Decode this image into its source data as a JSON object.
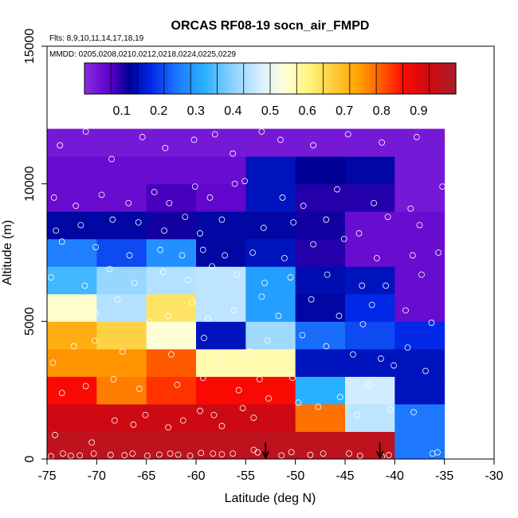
{
  "chart_data": {
    "type": "heatmap",
    "title": "ORCAS RF08-19 socn_air_FMPD",
    "flights_note": "Flts: 8,9,10,11,14,17,18,19",
    "dates_note": "MMDD: 0205,0208,0210,0212,0218,0224,0225,0229",
    "xlabel": "Latitude (deg N)",
    "ylabel": "Altitude (m)",
    "xlim": [
      -75,
      -30
    ],
    "ylim": [
      0,
      15000
    ],
    "x_ticks": [
      -75,
      -70,
      -65,
      -60,
      -55,
      -50,
      -45,
      -40,
      -35,
      -30
    ],
    "y_ticks": [
      0,
      5000,
      10000,
      15000
    ],
    "x_tick_labels": [
      "-75",
      "-70",
      "-65",
      "-60",
      "-55",
      "-50",
      "-45",
      "-40",
      "-35",
      "-30"
    ],
    "y_tick_labels": [
      "0",
      "5000",
      "10000",
      "15000"
    ],
    "colorbar": {
      "range": [
        0,
        1
      ],
      "tick_values": [
        0.1,
        0.2,
        0.3,
        0.4,
        0.5,
        0.6,
        0.7,
        0.8,
        0.9
      ],
      "tick_labels": [
        "0.1",
        "0.2",
        "0.3",
        "0.4",
        "0.5",
        "0.6",
        "0.7",
        "0.8",
        "0.9"
      ]
    },
    "lat_bin_edges": [
      -75,
      -70,
      -65,
      -60,
      -55,
      -50,
      -45,
      -40,
      -35
    ],
    "alt_bin_edges": [
      0,
      1000,
      2000,
      3000,
      4000,
      5000,
      6000,
      7000,
      8000,
      9000,
      10000,
      11000,
      12000
    ],
    "grid_values_bottom_to_top": [
      [
        0.96,
        0.96,
        0.96,
        0.96,
        0.96,
        0.96,
        0.96,
        0.25
      ],
      [
        0.93,
        0.93,
        0.93,
        0.93,
        0.93,
        0.78,
        0.45,
        0.25
      ],
      [
        0.87,
        0.77,
        0.83,
        0.87,
        0.87,
        0.32,
        0.47,
        0.15
      ],
      [
        0.75,
        0.75,
        0.8,
        0.57,
        0.57,
        0.15,
        0.15,
        0.15
      ],
      [
        0.72,
        0.66,
        0.54,
        0.15,
        0.42,
        0.24,
        0.21,
        0.18
      ],
      [
        0.55,
        0.44,
        0.63,
        0.45,
        0.3,
        0.13,
        0.18,
        0.05
      ],
      [
        0.34,
        0.41,
        0.44,
        0.45,
        0.3,
        0.14,
        0.15,
        0.05
      ],
      [
        0.26,
        0.21,
        0.28,
        0.13,
        0.15,
        0.1,
        0.05,
        0.05
      ],
      [
        0.13,
        0.13,
        0.11,
        0.13,
        0.13,
        0.11,
        0.05,
        0.05
      ],
      [
        0.05,
        0.05,
        0.08,
        0.06,
        0.15,
        0.1,
        0.1,
        0.03
      ],
      [
        0.05,
        0.05,
        0.05,
        0.05,
        0.15,
        0.12,
        0.13,
        0.03
      ],
      [
        0.03,
        0.03,
        0.03,
        0.03,
        0.03,
        0.03,
        0.03,
        0.03
      ]
    ],
    "obs_points": [
      [
        -74.6,
        100
      ],
      [
        -73.4,
        200
      ],
      [
        -72.6,
        120
      ],
      [
        -71.7,
        130
      ],
      [
        -70.3,
        200
      ],
      [
        -68.6,
        150
      ],
      [
        -67.2,
        140
      ],
      [
        -66.4,
        200
      ],
      [
        -64.9,
        120
      ],
      [
        -63.7,
        160
      ],
      [
        -62.6,
        200
      ],
      [
        -61.8,
        160
      ],
      [
        -60.6,
        120
      ],
      [
        -59.5,
        220
      ],
      [
        -58.3,
        200
      ],
      [
        -57.4,
        170
      ],
      [
        -56.3,
        200
      ],
      [
        -54.2,
        330
      ],
      [
        -53.8,
        240
      ],
      [
        -51.4,
        130
      ],
      [
        -50.4,
        250
      ],
      [
        -48.5,
        150
      ],
      [
        -47.2,
        200
      ],
      [
        -44.6,
        200
      ],
      [
        -43.5,
        120
      ],
      [
        -41.3,
        90
      ],
      [
        -40.6,
        140
      ],
      [
        -36.2,
        200
      ],
      [
        -35.7,
        240
      ],
      [
        -74.2,
        870
      ],
      [
        -70.5,
        600
      ],
      [
        -68.2,
        1400
      ],
      [
        -66.3,
        1250
      ],
      [
        -65.1,
        1600
      ],
      [
        -62.8,
        1150
      ],
      [
        -61.3,
        1400
      ],
      [
        -59.6,
        1750
      ],
      [
        -58.2,
        1600
      ],
      [
        -57.4,
        1200
      ],
      [
        -55.3,
        1850
      ],
      [
        -54.2,
        1500
      ],
      [
        -52.7,
        2200
      ],
      [
        -49.7,
        2050
      ],
      [
        -47.7,
        1900
      ],
      [
        -45.5,
        2250
      ],
      [
        -43.8,
        1600
      ],
      [
        -40.4,
        1800
      ],
      [
        -38.1,
        1700
      ],
      [
        -73.5,
        2400
      ],
      [
        -71.1,
        2650
      ],
      [
        -68.3,
        2900
      ],
      [
        -65.7,
        2550
      ],
      [
        -61.9,
        2700
      ],
      [
        -59.3,
        2950
      ],
      [
        -55.7,
        2500
      ],
      [
        -53.6,
        2900
      ],
      [
        -50.3,
        2950
      ],
      [
        -44.2,
        3800
      ],
      [
        -42.6,
        2700
      ],
      [
        -40.1,
        3400
      ],
      [
        -36.9,
        3200
      ],
      [
        -74.4,
        3500
      ],
      [
        -72.3,
        4100
      ],
      [
        -70.2,
        4300
      ],
      [
        -67.4,
        3900
      ],
      [
        -64.6,
        4300
      ],
      [
        -62.5,
        3800
      ],
      [
        -59.2,
        4400
      ],
      [
        -57.5,
        3500
      ],
      [
        -54.6,
        3900
      ],
      [
        -52.8,
        4300
      ],
      [
        -49.3,
        4500
      ],
      [
        -46.9,
        4100
      ],
      [
        -43.2,
        4900
      ],
      [
        -41.4,
        3650
      ],
      [
        -38.7,
        4050
      ],
      [
        -73.1,
        5500
      ],
      [
        -70.1,
        5300
      ],
      [
        -67.9,
        5800
      ],
      [
        -64.7,
        5000
      ],
      [
        -62.8,
        5200
      ],
      [
        -60.4,
        5700
      ],
      [
        -58.8,
        5100
      ],
      [
        -56.2,
        5400
      ],
      [
        -53.4,
        5900
      ],
      [
        -51.7,
        5200
      ],
      [
        -48.4,
        5800
      ],
      [
        -45.6,
        5200
      ],
      [
        -42.3,
        5600
      ],
      [
        -38.9,
        5400
      ],
      [
        -36.3,
        4950
      ],
      [
        -74.6,
        6600
      ],
      [
        -71.2,
        6300
      ],
      [
        -68.7,
        6900
      ],
      [
        -66.2,
        6400
      ],
      [
        -63.3,
        6800
      ],
      [
        -60.8,
        6500
      ],
      [
        -58.4,
        7000
      ],
      [
        -55.9,
        6700
      ],
      [
        -53.1,
        6400
      ],
      [
        -50.5,
        6600
      ],
      [
        -46.8,
        6700
      ],
      [
        -43.3,
        6300
      ],
      [
        -40.9,
        6300
      ],
      [
        -37.3,
        6700
      ],
      [
        -73.5,
        7900
      ],
      [
        -70.1,
        7700
      ],
      [
        -66.7,
        7400
      ],
      [
        -63.6,
        7600
      ],
      [
        -61.4,
        7400
      ],
      [
        -59.3,
        7600
      ],
      [
        -57.1,
        7400
      ],
      [
        -54.3,
        7500
      ],
      [
        -51.1,
        7300
      ],
      [
        -48.2,
        7800
      ],
      [
        -45.1,
        8000
      ],
      [
        -41.8,
        7300
      ],
      [
        -38.2,
        7400
      ],
      [
        -35.6,
        7500
      ],
      [
        -74.1,
        8300
      ],
      [
        -71.6,
        8500
      ],
      [
        -68.4,
        8700
      ],
      [
        -65.8,
        8600
      ],
      [
        -63.2,
        8300
      ],
      [
        -61.1,
        8800
      ],
      [
        -59.6,
        8200
      ],
      [
        -57.4,
        8700
      ],
      [
        -53.2,
        8400
      ],
      [
        -50.2,
        8600
      ],
      [
        -46.9,
        8700
      ],
      [
        -43.6,
        8200
      ],
      [
        -40.7,
        8800
      ],
      [
        -37.5,
        8500
      ],
      [
        -74.3,
        9500
      ],
      [
        -72.1,
        9200
      ],
      [
        -69.5,
        9600
      ],
      [
        -66.8,
        9300
      ],
      [
        -64.2,
        9700
      ],
      [
        -62.7,
        9300
      ],
      [
        -60.1,
        9900
      ],
      [
        -58.6,
        9500
      ],
      [
        -56.1,
        10000
      ],
      [
        -55.1,
        10100
      ],
      [
        -51.3,
        9500
      ],
      [
        -49.2,
        9200
      ],
      [
        -45.8,
        9800
      ],
      [
        -42.1,
        9300
      ],
      [
        -38.4,
        9100
      ],
      [
        -35.2,
        9900
      ],
      [
        -73.7,
        11400
      ],
      [
        -71.1,
        11900
      ],
      [
        -68.5,
        10900
      ],
      [
        -65.4,
        11700
      ],
      [
        -63.1,
        11300
      ],
      [
        -60.2,
        11600
      ],
      [
        -58.1,
        11800
      ],
      [
        -56.3,
        11100
      ],
      [
        -53.4,
        11900
      ],
      [
        -51.5,
        11600
      ],
      [
        -48.2,
        11400
      ],
      [
        -44.7,
        11800
      ],
      [
        -41.3,
        11500
      ],
      [
        -37.8,
        11700
      ]
    ],
    "arrow_markers": [
      {
        "lat": -53.0,
        "alt_top": 600,
        "alt_bottom": 50
      },
      {
        "lat": -41.5,
        "alt_top": 600,
        "alt_bottom": 50
      }
    ]
  }
}
